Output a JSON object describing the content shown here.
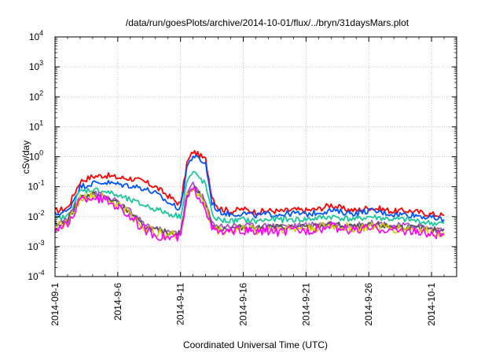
{
  "chart_data": {
    "type": "line",
    "title": "/data/run/goesPlots/archive/2014-10-01/flux/../bryn/31daysMars.plot",
    "xlabel": "Coordinated Universal Time (UTC)",
    "ylabel": "cSv/day",
    "yscale": "log",
    "ylim": [
      0.0001,
      10000
    ],
    "xlim": [
      "2014-09-01",
      "2014-10-03"
    ],
    "grid": true,
    "legend": "none",
    "y_tick_labels": [
      {
        "base": "10",
        "exp": "-4"
      },
      {
        "base": "10",
        "exp": "-3"
      },
      {
        "base": "10",
        "exp": "-2"
      },
      {
        "base": "10",
        "exp": "-1"
      },
      {
        "base": "10",
        "exp": "0"
      },
      {
        "base": "10",
        "exp": "1"
      },
      {
        "base": "10",
        "exp": "2"
      },
      {
        "base": "10",
        "exp": "3"
      },
      {
        "base": "10",
        "exp": "4"
      }
    ],
    "x_tick_labels": [
      "2014-09-1",
      "2014-9-6",
      "2014-9-11",
      "2014-9-16",
      "2014-9-21",
      "2014-9-26",
      "2014-10-1"
    ],
    "x": [
      1,
      2,
      3,
      4,
      5,
      6,
      7,
      8,
      9,
      10,
      11,
      11.5,
      12,
      12.5,
      13,
      13.5,
      14,
      15,
      16,
      17,
      18,
      19,
      20,
      21,
      22,
      23,
      24,
      25,
      26,
      27,
      28,
      29,
      30,
      31,
      32
    ],
    "series": [
      {
        "color": "#ff0000",
        "values": [
          0.015,
          0.02,
          0.15,
          0.22,
          0.24,
          0.2,
          0.19,
          0.15,
          0.1,
          0.05,
          0.025,
          0.6,
          1.5,
          1.1,
          0.8,
          0.05,
          0.02,
          0.015,
          0.018,
          0.014,
          0.016,
          0.015,
          0.017,
          0.016,
          0.018,
          0.025,
          0.018,
          0.016,
          0.02,
          0.018,
          0.015,
          0.016,
          0.014,
          0.012,
          0.011
        ]
      },
      {
        "color": "#0055ff",
        "values": [
          0.012,
          0.015,
          0.1,
          0.13,
          0.14,
          0.12,
          0.11,
          0.09,
          0.06,
          0.03,
          0.018,
          0.45,
          1.1,
          0.8,
          0.6,
          0.03,
          0.015,
          0.012,
          0.013,
          0.011,
          0.012,
          0.012,
          0.013,
          0.012,
          0.014,
          0.016,
          0.014,
          0.013,
          0.016,
          0.014,
          0.012,
          0.012,
          0.011,
          0.009,
          0.008
        ]
      },
      {
        "color": "#22c59a",
        "values": [
          0.008,
          0.01,
          0.07,
          0.08,
          0.07,
          0.05,
          0.035,
          0.025,
          0.018,
          0.013,
          0.01,
          0.15,
          0.3,
          0.2,
          0.12,
          0.012,
          0.008,
          0.007,
          0.008,
          0.007,
          0.008,
          0.008,
          0.008,
          0.008,
          0.009,
          0.01,
          0.009,
          0.008,
          0.01,
          0.009,
          0.008,
          0.008,
          0.007,
          0.006,
          0.006
        ]
      },
      {
        "color": "#aa55cc",
        "values": [
          0.006,
          0.008,
          0.05,
          0.06,
          0.05,
          0.03,
          0.015,
          0.006,
          0.004,
          0.003,
          0.003,
          0.06,
          0.12,
          0.07,
          0.03,
          0.006,
          0.005,
          0.005,
          0.005,
          0.005,
          0.005,
          0.005,
          0.005,
          0.005,
          0.006,
          0.006,
          0.005,
          0.005,
          0.006,
          0.006,
          0.005,
          0.005,
          0.005,
          0.004,
          0.004
        ]
      },
      {
        "color": "#555555",
        "values": [
          0.005,
          0.007,
          0.045,
          0.055,
          0.045,
          0.028,
          0.013,
          0.005,
          0.0035,
          0.003,
          0.0028,
          0.05,
          0.1,
          0.06,
          0.025,
          0.005,
          0.004,
          0.004,
          0.0045,
          0.004,
          0.0045,
          0.0045,
          0.0045,
          0.0045,
          0.005,
          0.0055,
          0.005,
          0.0045,
          0.005,
          0.005,
          0.0045,
          0.0045,
          0.004,
          0.0035,
          0.0035
        ]
      },
      {
        "color": "#cccc00",
        "values": [
          0.0045,
          0.006,
          0.04,
          0.05,
          0.04,
          0.025,
          0.012,
          0.0045,
          0.003,
          0.0025,
          0.0025,
          0.045,
          0.09,
          0.055,
          0.022,
          0.0045,
          0.0035,
          0.0035,
          0.004,
          0.0035,
          0.004,
          0.004,
          0.004,
          0.004,
          0.0045,
          0.005,
          0.0045,
          0.004,
          0.0045,
          0.0045,
          0.004,
          0.004,
          0.0035,
          0.003,
          0.003
        ]
      },
      {
        "color": "#ff00ff",
        "values": [
          0.004,
          0.005,
          0.035,
          0.045,
          0.035,
          0.022,
          0.01,
          0.004,
          0.0025,
          0.002,
          0.002,
          0.04,
          0.08,
          0.05,
          0.02,
          0.004,
          0.003,
          0.003,
          0.0035,
          0.003,
          0.0035,
          0.003,
          0.0035,
          0.0035,
          0.004,
          0.0045,
          0.004,
          0.0035,
          0.004,
          0.004,
          0.0035,
          0.0035,
          0.003,
          0.0025,
          0.0025
        ]
      }
    ]
  }
}
